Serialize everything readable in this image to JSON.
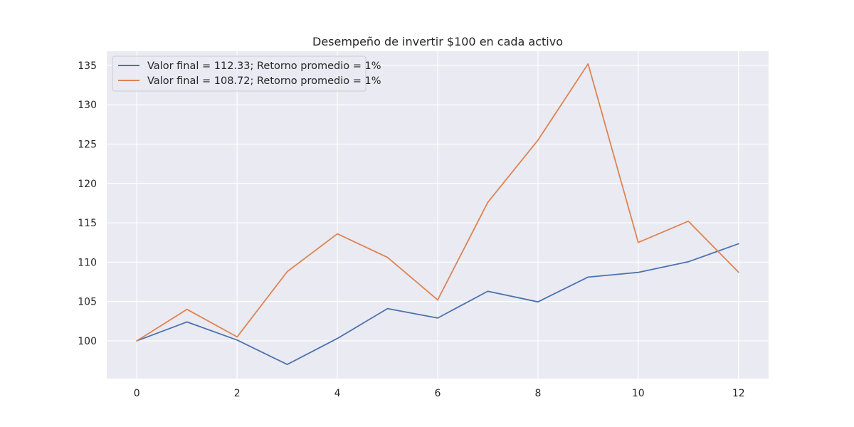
{
  "chart_data": {
    "type": "line",
    "title": "Desempeño de invertir $100 en cada activo",
    "xlabel": "",
    "ylabel": "",
    "x": [
      0,
      1,
      2,
      3,
      4,
      5,
      6,
      7,
      8,
      9,
      10,
      11,
      12
    ],
    "xlim": [
      -0.6,
      12.6
    ],
    "ylim": [
      95.2,
      136.8
    ],
    "xticks": [
      0,
      2,
      4,
      6,
      8,
      10,
      12
    ],
    "yticks": [
      100,
      105,
      110,
      115,
      120,
      125,
      130,
      135
    ],
    "grid": true,
    "legend_position": "top-left",
    "background": "#eaeaf2",
    "series": [
      {
        "name": "Valor final = 112.33; Retorno promedio = 1%",
        "color": "#4c72b0",
        "values": [
          100.0,
          102.4,
          100.1,
          97.0,
          100.3,
          104.1,
          102.9,
          106.3,
          104.95,
          108.1,
          108.7,
          110.05,
          112.33
        ]
      },
      {
        "name": "Valor final = 108.72; Retorno promedio = 1%",
        "color": "#dd8452",
        "values": [
          100.0,
          104.0,
          100.5,
          108.8,
          113.6,
          110.6,
          105.2,
          117.6,
          125.5,
          135.2,
          112.5,
          115.2,
          108.72
        ]
      }
    ]
  }
}
